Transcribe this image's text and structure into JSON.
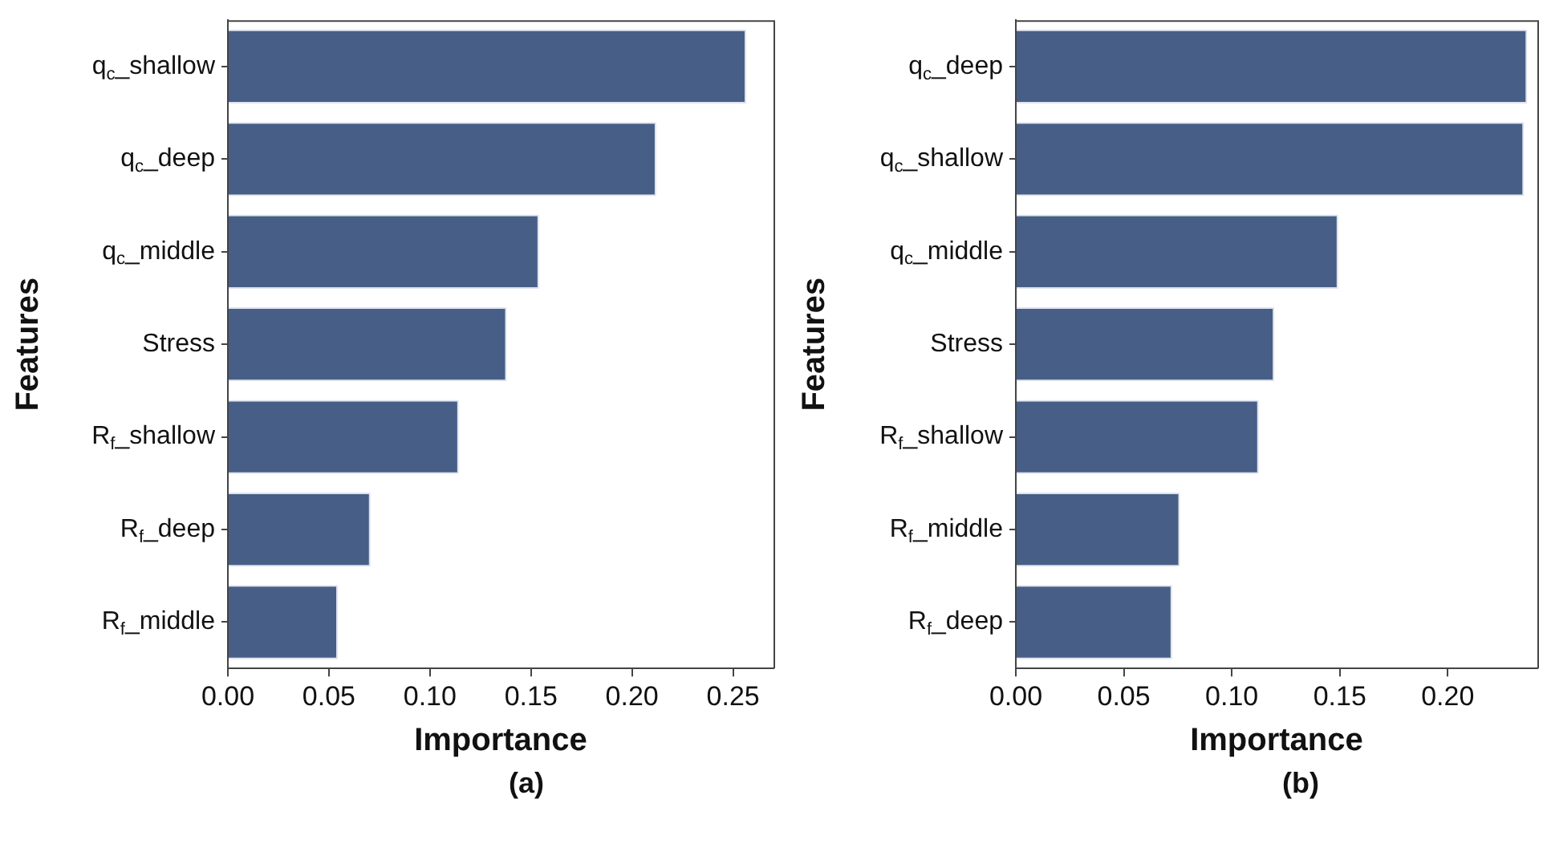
{
  "chart_data": [
    {
      "type": "bar",
      "orientation": "horizontal",
      "categories": [
        "q$_{c}$_shallow",
        "q$_{c}$_deep",
        "q$_{c}$_middle",
        "Stress",
        "R$_{f}$_shallow",
        "R$_{f}$_deep",
        "R$_{f}$_middle"
      ],
      "values": [
        0.2565,
        0.212,
        0.154,
        0.138,
        0.1143,
        0.0706,
        0.0544
      ],
      "color": "#475e87",
      "xlim": [
        0,
        0.27
      ],
      "xticks": [
        {
          "value": 0,
          "label": "0.00"
        },
        0.05,
        {
          "value": 0.1,
          "label": "0.10"
        },
        0.15,
        {
          "value": 0.2,
          "label": "0.20"
        },
        0.25
      ],
      "xlabel": "Importance",
      "ylabel": "Features",
      "legend": false,
      "annotations": [
        "(a)"
      ]
    },
    {
      "type": "bar",
      "orientation": "horizontal",
      "categories": [
        "q$_{c}$_deep",
        "q$_{c}$_shallow",
        "q$_{c}$_middle",
        "Stress",
        "R$_{f}$_shallow",
        "R$_{f}$_middle",
        "R$_{f}$_deep"
      ],
      "values": [
        0.2368,
        0.2353,
        0.1493,
        0.1197,
        0.1125,
        0.076,
        0.0724
      ],
      "color": "#475e87",
      "xlim": [
        0,
        0.2415
      ],
      "xticks": [
        {
          "value": 0,
          "label": "0.00"
        },
        0.05,
        {
          "value": 0.1,
          "label": "0.10"
        },
        0.15,
        {
          "value": 0.2,
          "label": "0.20"
        }
      ],
      "xlabel": "Importance",
      "ylabel": "Features",
      "legend": false,
      "annotations": [
        "(b)"
      ]
    }
  ]
}
